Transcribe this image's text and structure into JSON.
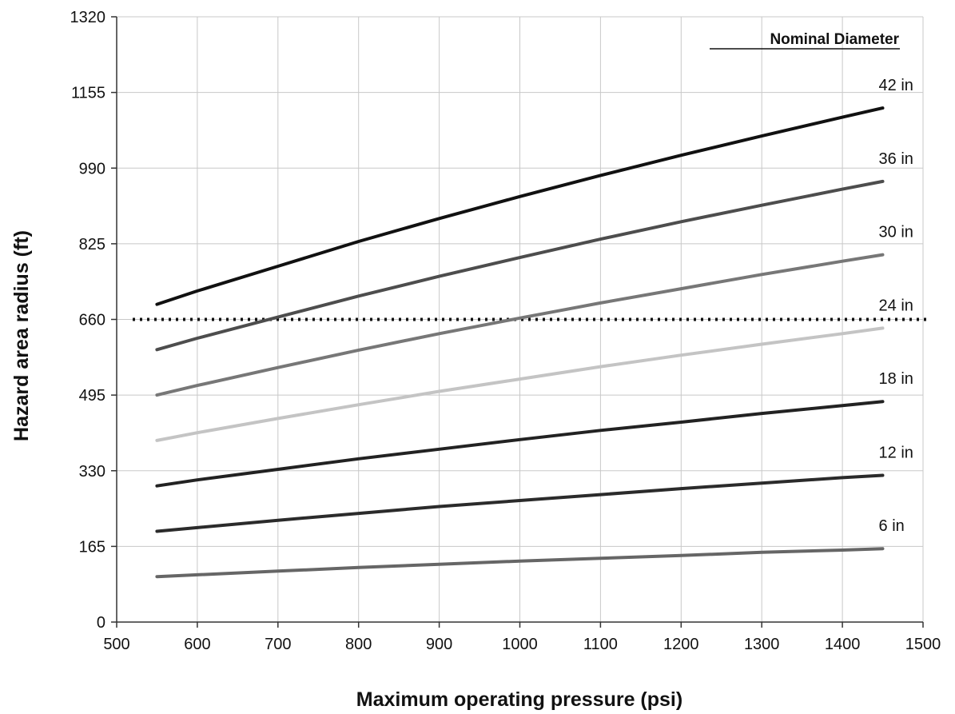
{
  "chart_data": {
    "type": "line",
    "xlabel": "Maximum operating pressure (psi)",
    "ylabel": "Hazard area radius (ft)",
    "xlim": [
      500,
      1500
    ],
    "ylim": [
      0,
      1320
    ],
    "xticks": [
      "500",
      "600",
      "700",
      "800",
      "900",
      "1000",
      "1100",
      "1200",
      "1300",
      "1400",
      "1500"
    ],
    "yticks": [
      "0",
      "165",
      "330",
      "495",
      "660",
      "825",
      "990",
      "1155",
      "1320"
    ],
    "grid": true,
    "legend_title": "Nominal Diameter",
    "legend_placement": "top-right",
    "x": [
      550,
      600,
      700,
      800,
      900,
      1000,
      1100,
      1200,
      1300,
      1400,
      1450
    ],
    "series": [
      {
        "name": "42 in",
        "color": "#111111",
        "values": [
          693,
          722,
          776,
          830,
          880,
          928,
          974,
          1018,
          1060,
          1101,
          1121
        ]
      },
      {
        "name": "36 in",
        "color": "#4d4d4d",
        "values": [
          594,
          619,
          665,
          711,
          754,
          795,
          835,
          873,
          909,
          944,
          961
        ]
      },
      {
        "name": "30 in",
        "color": "#777777",
        "values": [
          495,
          516,
          555,
          593,
          629,
          663,
          696,
          727,
          758,
          787,
          801
        ]
      },
      {
        "name": "24 in",
        "color": "#c4c4c4",
        "values": [
          396,
          413,
          444,
          474,
          503,
          530,
          557,
          582,
          606,
          629,
          641
        ]
      },
      {
        "name": "18 in",
        "color": "#222222",
        "values": [
          297,
          310,
          333,
          356,
          377,
          398,
          418,
          436,
          455,
          472,
          481
        ]
      },
      {
        "name": "12 in",
        "color": "#2b2b2b",
        "values": [
          198,
          206,
          222,
          237,
          252,
          265,
          278,
          291,
          303,
          315,
          320
        ]
      },
      {
        "name": "6 in",
        "color": "#666666",
        "values": [
          99,
          103,
          111,
          119,
          126,
          133,
          139,
          145,
          152,
          157,
          160
        ]
      }
    ],
    "reference_line": {
      "y": 660,
      "style": "dotted",
      "color": "#111111"
    }
  }
}
